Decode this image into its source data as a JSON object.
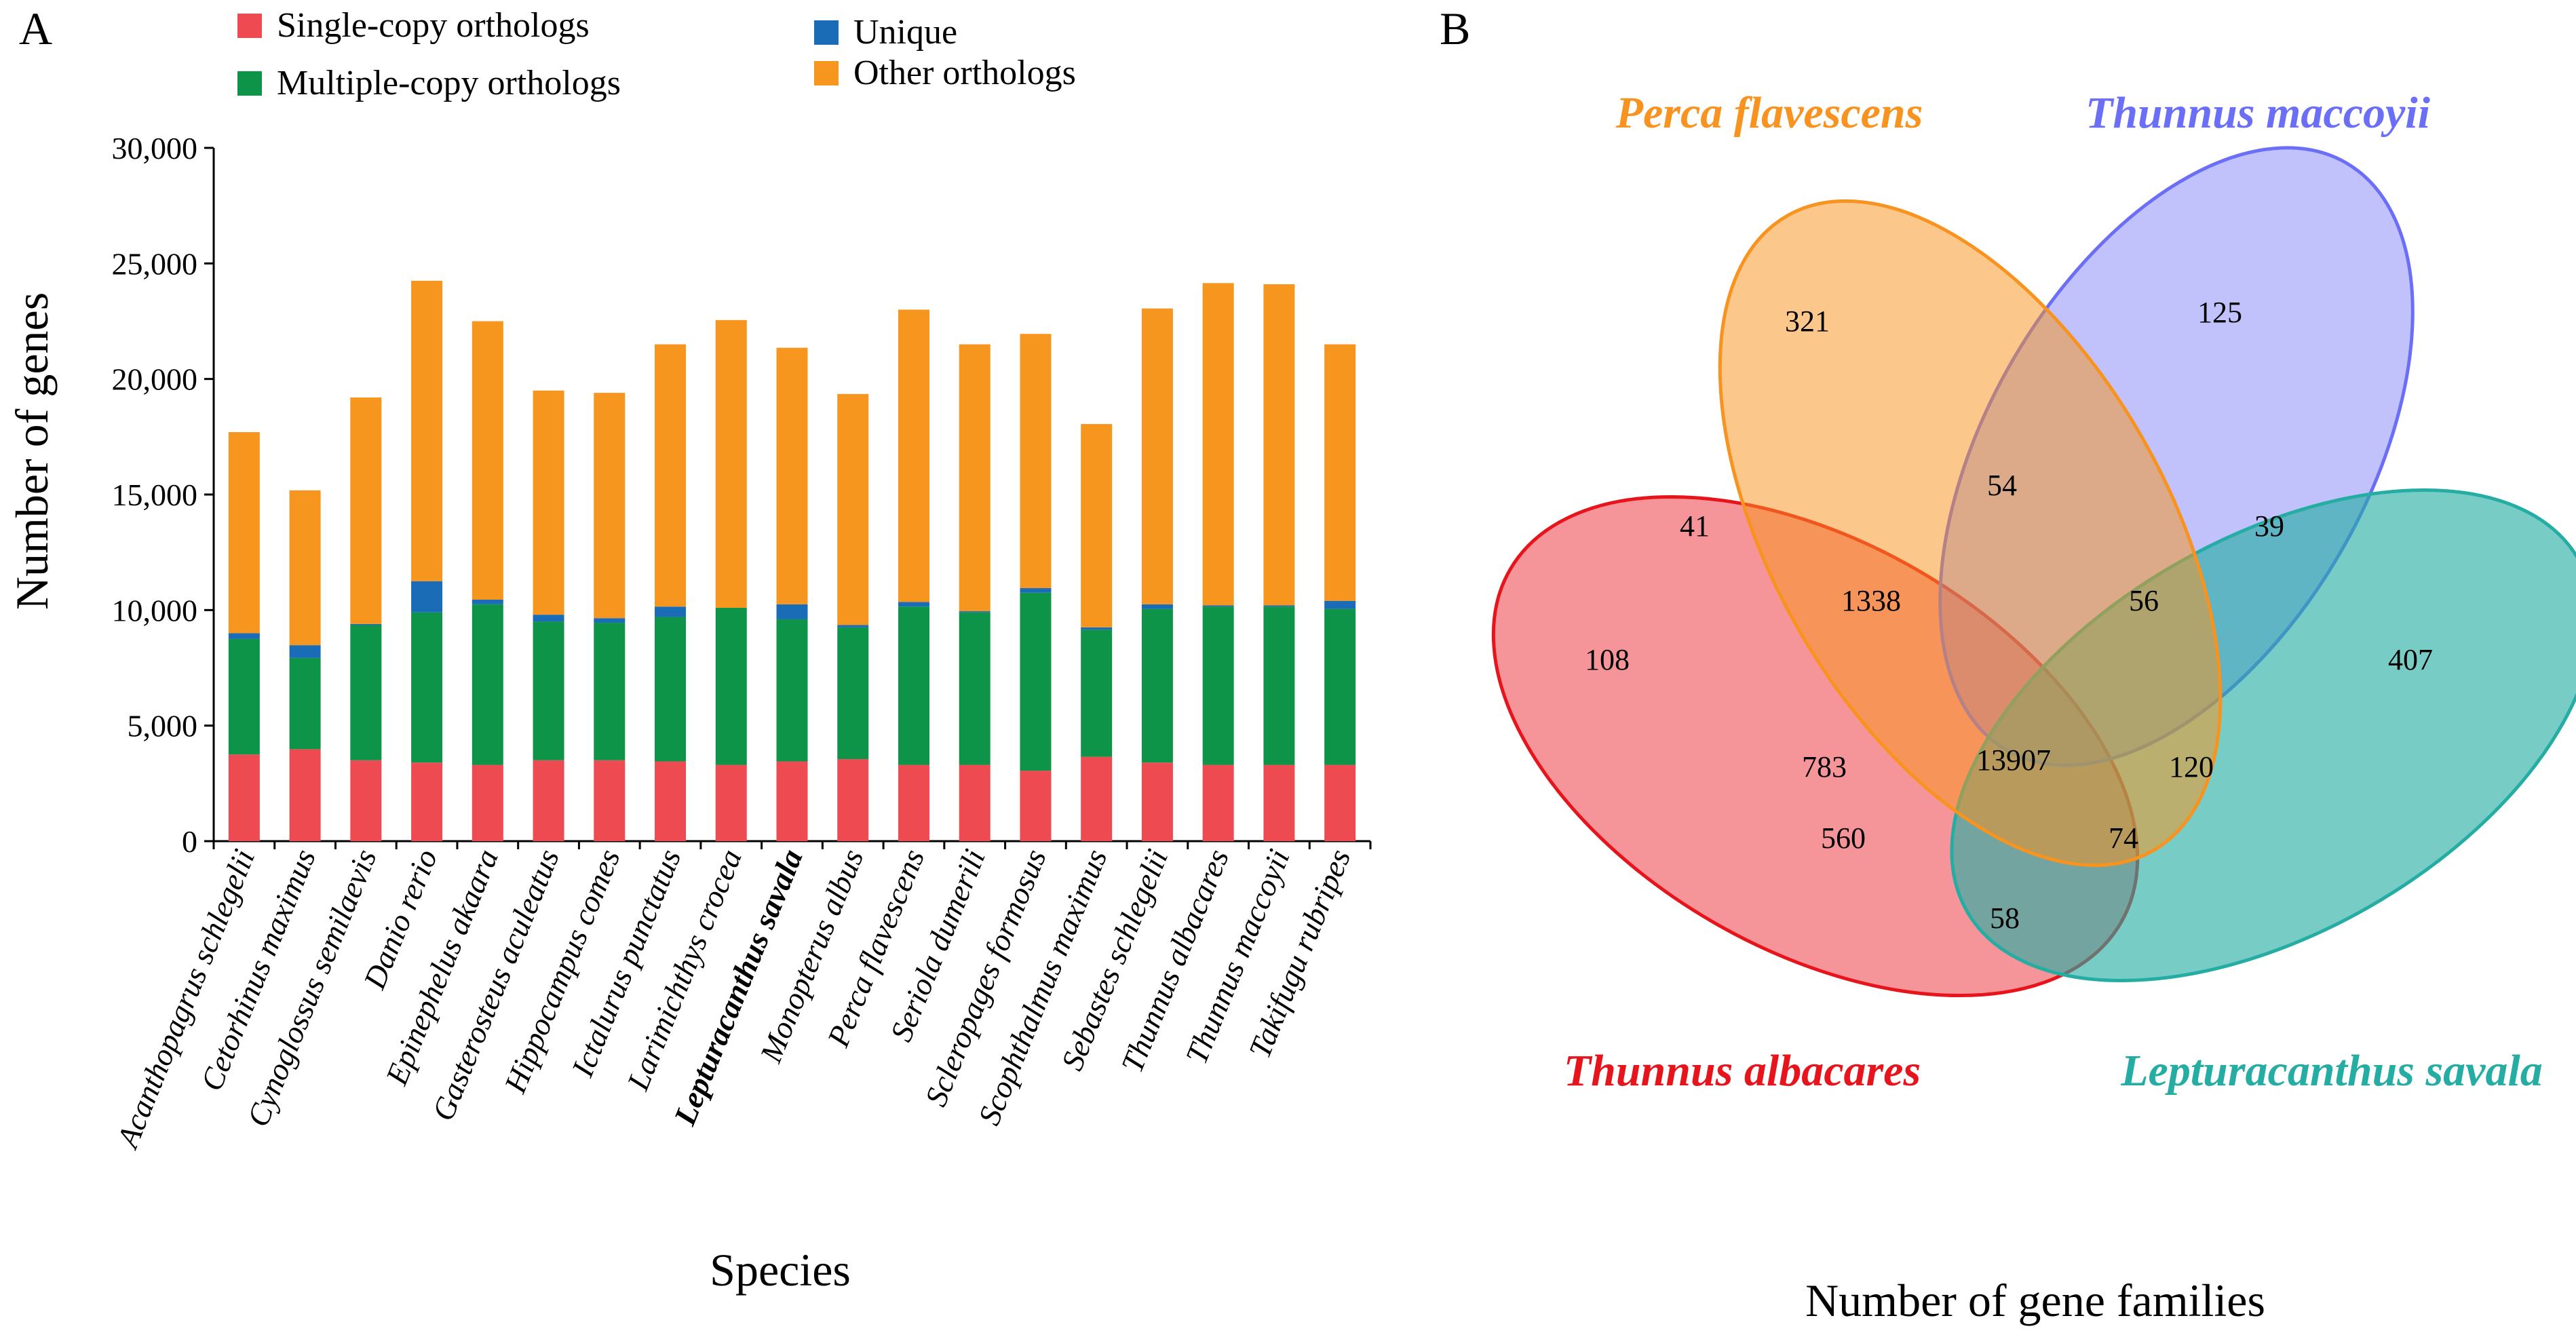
{
  "panel_a": {
    "label": "A"
  },
  "panel_b": {
    "label": "B"
  },
  "chart_data": [
    {
      "type": "bar",
      "stacked": true,
      "ylabel": "Number of genes",
      "xlabel": "Species",
      "ylim": [
        0,
        30000
      ],
      "yticks": [
        "0",
        "5,000",
        "10,000",
        "15,000",
        "20,000",
        "25,000",
        "30,000"
      ],
      "highlight_category": "Lepturacanthus savala",
      "categories": [
        "Acanthopagrus schlegelii",
        "Cetorhinus maximus",
        "Cynoglossus semilaevis",
        "Danio rerio",
        "Epinephelus akaara",
        "Gasterosteus aculeatus",
        "Hippocampus comes",
        "Ictalurus punctatus",
        "Larimichthys crocea",
        "Lepturacanthus savala",
        "Monopterus albus",
        "Perca flavescens",
        "Seriola dumerili",
        "Scleropages formosus",
        "Scophthalmus maximus",
        "Sebastes schlegelii",
        "Thunnus albacares",
        "Thunnus maccoyii",
        "Takifugu rubripes"
      ],
      "series": [
        {
          "name": "Single-copy orthologs",
          "color": "#ee4a52",
          "values": [
            3750,
            3980,
            3500,
            3400,
            3300,
            3500,
            3500,
            3450,
            3300,
            3450,
            3550,
            3300,
            3300,
            3050,
            3650,
            3400,
            3300,
            3300,
            3300
          ]
        },
        {
          "name": "Multiple-copy orthologs",
          "color": "#0d9448",
          "values": [
            5000,
            3950,
            5850,
            6500,
            6950,
            6000,
            5950,
            6250,
            6800,
            6150,
            5700,
            6850,
            6600,
            7700,
            5500,
            6650,
            6850,
            6850,
            6750
          ]
        },
        {
          "name": "Unique",
          "color": "#1a6cb7",
          "values": [
            250,
            550,
            50,
            1350,
            200,
            300,
            200,
            450,
            0,
            650,
            100,
            200,
            50,
            200,
            100,
            200,
            50,
            50,
            350
          ]
        },
        {
          "name": "Other orthologs",
          "color": "#f7961f",
          "values": [
            8700,
            6700,
            9800,
            13000,
            12050,
            9700,
            9750,
            11350,
            12450,
            11100,
            10000,
            12650,
            11550,
            11000,
            8800,
            12800,
            13950,
            13900,
            11100
          ]
        }
      ],
      "legend_position": "top"
    },
    {
      "type": "venn",
      "title": "Number of gene families",
      "sets": [
        {
          "name": "Perca flavescens",
          "color": "#f7931e"
        },
        {
          "name": "Thunnus maccoyii",
          "color": "#6b6ef7"
        },
        {
          "name": "Thunnus albacares",
          "color": "#e8141c"
        },
        {
          "name": "Lepturacanthus savala",
          "color": "#25ada3"
        }
      ],
      "regions": [
        {
          "sets": [
            "Perca flavescens"
          ],
          "value": "321"
        },
        {
          "sets": [
            "Thunnus maccoyii"
          ],
          "value": "125"
        },
        {
          "sets": [
            "Perca flavescens",
            "Thunnus maccoyii"
          ],
          "value": "54"
        },
        {
          "sets": [
            "Perca flavescens",
            "Thunnus albacares"
          ],
          "value": "41"
        },
        {
          "sets": [
            "Thunnus maccoyii",
            "Lepturacanthus savala"
          ],
          "value": "39"
        },
        {
          "sets": [
            "Perca flavescens",
            "Thunnus maccoyii",
            "Thunnus albacares"
          ],
          "value": "1338"
        },
        {
          "sets": [
            "Perca flavescens",
            "Thunnus maccoyii",
            "Lepturacanthus savala"
          ],
          "value": "56"
        },
        {
          "sets": [
            "Thunnus albacares"
          ],
          "value": "108"
        },
        {
          "sets": [
            "Lepturacanthus savala"
          ],
          "value": "407"
        },
        {
          "sets": [
            "Thunnus maccoyii",
            "Thunnus albacares"
          ],
          "value": "783"
        },
        {
          "sets": [
            "Perca flavescens",
            "Thunnus maccoyii",
            "Thunnus albacares",
            "Lepturacanthus savala"
          ],
          "value": "13907"
        },
        {
          "sets": [
            "Perca flavescens",
            "Lepturacanthus savala"
          ],
          "value": "120"
        },
        {
          "sets": [
            "Thunnus maccoyii",
            "Thunnus albacares",
            "Lepturacanthus savala"
          ],
          "value": "560"
        },
        {
          "sets": [
            "Perca flavescens",
            "Thunnus albacares",
            "Lepturacanthus savala"
          ],
          "value": "74"
        },
        {
          "sets": [
            "Thunnus albacares",
            "Lepturacanthus savala"
          ],
          "value": "58"
        }
      ]
    }
  ]
}
